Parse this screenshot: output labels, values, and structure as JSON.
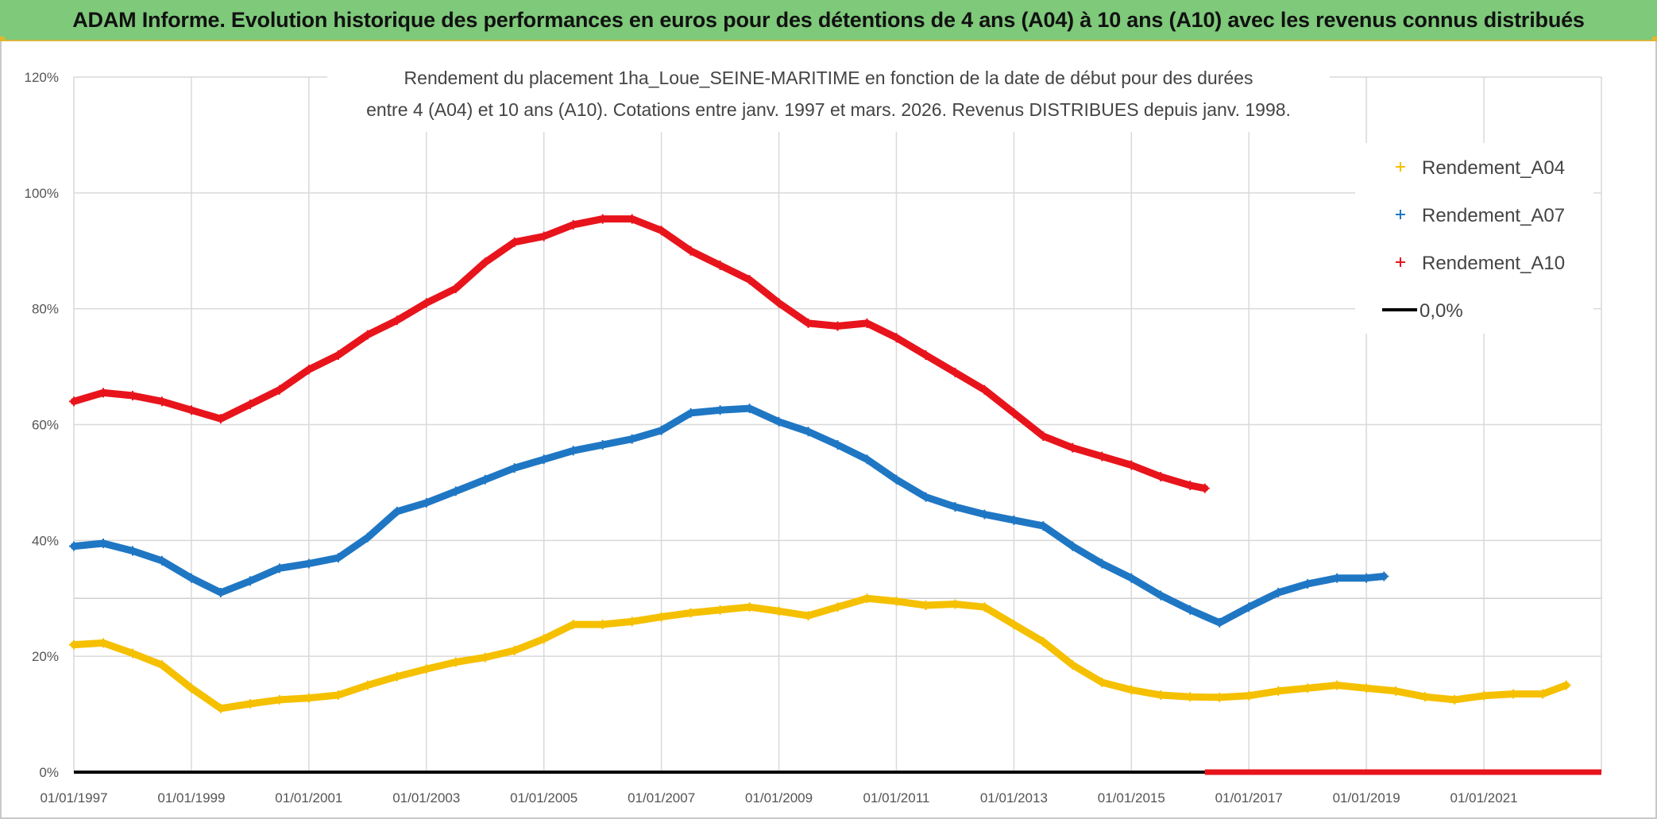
{
  "banner": {
    "text": "ADAM Informe. Evolution historique des performances en euros pour des détentions de 4 ans (A04) à 10 ans (A10) avec les revenus connus distribués"
  },
  "chart_data": {
    "type": "scatter",
    "title_line1": "Rendement du placement 1ha_Loue_SEINE-MARITIME en fonction de la date de début pour des durées",
    "title_line2": "entre 4 (A04) et 10 ans (A10). Cotations entre janv. 1997 et mars. 2026. Revenus DISTRIBUES depuis janv. 1998.",
    "xlabel": "",
    "ylabel": "",
    "xlim": [
      1997.0,
      2023.0
    ],
    "ylim": [
      0,
      120
    ],
    "y_ticks": [
      0,
      20,
      40,
      60,
      80,
      100,
      120
    ],
    "y_tick_labels": [
      "0%",
      "20%",
      "40%",
      "60%",
      "80%",
      "100%",
      "120%"
    ],
    "x_ticks": [
      1997,
      1999,
      2001,
      2003,
      2005,
      2007,
      2009,
      2011,
      2013,
      2015,
      2017,
      2019,
      2021
    ],
    "x_tick_labels": [
      "01/01/1997",
      "01/01/1999",
      "01/01/2001",
      "01/01/2003",
      "01/01/2005",
      "01/01/2007",
      "01/01/2009",
      "01/01/2011",
      "01/01/2013",
      "01/01/2015",
      "01/01/2017",
      "01/01/2019",
      "01/01/2021"
    ],
    "reference_line": {
      "name": "0,0%",
      "value": 0,
      "color": "#000000"
    },
    "legend_position": "top-right",
    "series": [
      {
        "name": "Rendement_A04",
        "color": "#f5c000",
        "x": [
          1997.0,
          1997.5,
          1998.0,
          1998.5,
          1999.0,
          1999.5,
          2000.0,
          2000.5,
          2001.0,
          2001.5,
          2002.0,
          2002.5,
          2003.0,
          2003.5,
          2004.0,
          2004.5,
          2005.0,
          2005.5,
          2006.0,
          2006.5,
          2007.0,
          2007.5,
          2008.0,
          2008.5,
          2009.0,
          2009.5,
          2010.0,
          2010.5,
          2011.0,
          2011.5,
          2012.0,
          2012.5,
          2013.0,
          2013.5,
          2014.0,
          2014.5,
          2015.0,
          2015.5,
          2016.0,
          2016.5,
          2017.0,
          2017.5,
          2018.0,
          2018.5,
          2019.0,
          2019.5,
          2020.0,
          2020.5,
          2021.0,
          2021.5,
          2022.0,
          2022.4
        ],
        "values": [
          22,
          22.3,
          20.5,
          18.5,
          14.5,
          11,
          11.8,
          12.5,
          12.8,
          13.3,
          15,
          16.5,
          17.8,
          19,
          19.8,
          21,
          23,
          25.5,
          25.5,
          26,
          26.8,
          27.5,
          28,
          28.5,
          27.8,
          27,
          28.5,
          30,
          29.5,
          28.8,
          29,
          28.5,
          25.5,
          22.5,
          18.5,
          15.5,
          14.2,
          13.3,
          13,
          12.9,
          13.2,
          14,
          14.5,
          15,
          14.5,
          14,
          13,
          12.5,
          13.2,
          13.5,
          13.5,
          15
        ]
      },
      {
        "name": "Rendement_A07",
        "color": "#1f77c4",
        "x": [
          1997.0,
          1997.5,
          1998.0,
          1998.5,
          1999.0,
          1999.5,
          2000.0,
          2000.5,
          2001.0,
          2001.5,
          2002.0,
          2002.5,
          2003.0,
          2003.5,
          2004.0,
          2004.5,
          2005.0,
          2005.5,
          2006.0,
          2006.5,
          2007.0,
          2007.5,
          2008.0,
          2008.5,
          2009.0,
          2009.5,
          2010.0,
          2010.5,
          2011.0,
          2011.5,
          2012.0,
          2012.5,
          2013.0,
          2013.5,
          2014.0,
          2014.5,
          2015.0,
          2015.5,
          2016.0,
          2016.5,
          2017.0,
          2017.5,
          2018.0,
          2018.5,
          2019.0,
          2019.3
        ],
        "values": [
          39,
          39.5,
          38.2,
          36.5,
          33.5,
          31,
          33,
          35.2,
          36,
          37,
          40.5,
          45,
          46.5,
          48.5,
          50.5,
          52.5,
          54,
          55.5,
          56.5,
          57.5,
          59,
          62,
          62.5,
          62.8,
          60.5,
          58.8,
          56.5,
          54,
          50.5,
          47.5,
          45.8,
          44.5,
          43.5,
          42.5,
          39,
          36,
          33.5,
          30.5,
          28,
          25.8,
          28.5,
          31,
          32.5,
          33.5,
          33.5,
          33.8
        ]
      },
      {
        "name": "Rendement_A10",
        "color": "#e8141c",
        "x": [
          1997.0,
          1997.5,
          1998.0,
          1998.5,
          1999.0,
          1999.5,
          2000.0,
          2000.5,
          2001.0,
          2001.5,
          2002.0,
          2002.5,
          2003.0,
          2003.5,
          2004.0,
          2004.5,
          2005.0,
          2005.5,
          2006.0,
          2006.5,
          2007.0,
          2007.5,
          2008.0,
          2008.5,
          2009.0,
          2009.5,
          2010.0,
          2010.5,
          2011.0,
          2011.5,
          2012.0,
          2012.5,
          2013.0,
          2013.5,
          2014.0,
          2014.5,
          2015.0,
          2015.5,
          2016.0,
          2016.25
        ],
        "values": [
          64,
          65.5,
          65,
          64,
          62.5,
          61,
          63.5,
          66,
          69.5,
          72,
          75.5,
          78,
          81,
          83.5,
          88,
          91.5,
          92.5,
          94.5,
          95.5,
          95.5,
          93.5,
          90,
          87.5,
          85,
          81,
          77.5,
          77,
          77.5,
          75,
          72,
          69,
          66,
          62,
          58,
          56,
          54.5,
          53,
          51,
          49.5,
          49
        ]
      }
    ],
    "zero_segment": {
      "series": "Rendement_A10",
      "x_start": 2016.25,
      "x_end": 2023.0,
      "value": 0
    }
  }
}
